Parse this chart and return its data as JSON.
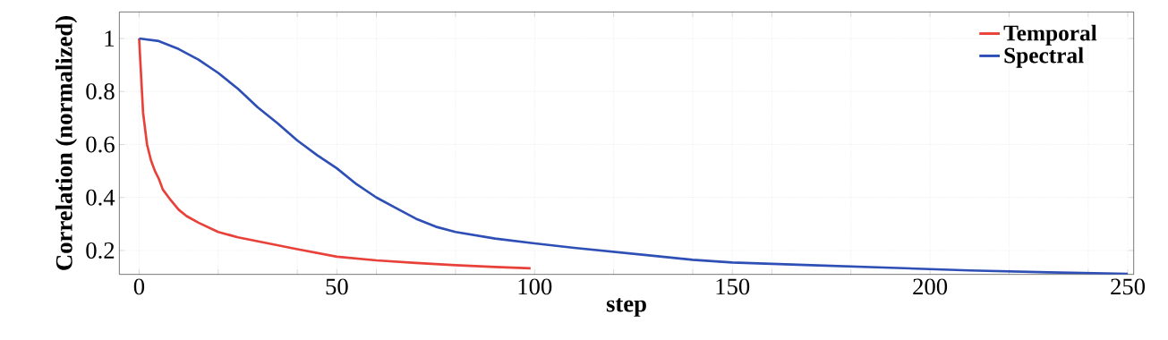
{
  "chart_data": {
    "type": "line",
    "xlabel": "step",
    "ylabel": "Correlation (normalized)",
    "xlim": [
      -5,
      251.5
    ],
    "ylim": [
      0.11,
      1.1
    ],
    "xticks": [
      0,
      {
        "value": 20,
        "label": null
      },
      {
        "value": 40,
        "label": null
      },
      50,
      {
        "value": 60,
        "label": null
      },
      {
        "value": 80,
        "label": null
      },
      100,
      {
        "value": 120,
        "label": null
      },
      {
        "value": 140,
        "label": null
      },
      150,
      {
        "value": 160,
        "label": null
      },
      {
        "value": 180,
        "label": null
      },
      200,
      {
        "value": 220,
        "label": null
      },
      {
        "value": 240,
        "label": null
      },
      250
    ],
    "yticks": [
      0.2,
      0.4,
      0.6,
      0.8,
      1
    ],
    "grid": true,
    "legend": "top right",
    "marker": "none",
    "line_style": "solid",
    "series": [
      {
        "name": "Temporal",
        "color": "#e8413a",
        "x": [
          0,
          1,
          2,
          3,
          4,
          5,
          6,
          8,
          10,
          12,
          15,
          20,
          25,
          30,
          40,
          50,
          60,
          70,
          80,
          90,
          99
        ],
        "values": [
          1.0,
          0.72,
          0.6,
          0.54,
          0.5,
          0.47,
          0.43,
          0.39,
          0.354,
          0.33,
          0.305,
          0.27,
          0.25,
          0.235,
          0.205,
          0.177,
          0.163,
          0.153,
          0.145,
          0.138,
          0.133
        ]
      },
      {
        "name": "Spectral",
        "color": "#2e4fb5",
        "x": [
          0,
          5,
          10,
          15,
          20,
          25,
          30,
          35,
          40,
          45,
          50,
          55,
          60,
          65,
          70,
          75,
          80,
          90,
          100,
          110,
          120,
          130,
          140,
          150,
          170,
          190,
          210,
          230,
          250
        ],
        "values": [
          1.0,
          0.99,
          0.96,
          0.92,
          0.87,
          0.81,
          0.74,
          0.68,
          0.615,
          0.56,
          0.51,
          0.45,
          0.4,
          0.36,
          0.32,
          0.29,
          0.27,
          0.245,
          0.227,
          0.21,
          0.195,
          0.18,
          0.165,
          0.155,
          0.145,
          0.135,
          0.125,
          0.118,
          0.112
        ]
      }
    ]
  }
}
